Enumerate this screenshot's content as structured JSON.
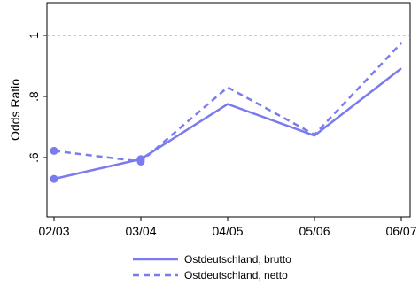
{
  "chart_data": {
    "type": "line",
    "xlabel": "",
    "ylabel": "Odds Ratio",
    "categories": [
      "02/03",
      "03/04",
      "04/05",
      "05/06",
      "06/07"
    ],
    "yticks": [
      {
        "value": 0.6,
        "label": ".6"
      },
      {
        "value": 0.8,
        "label": ".8"
      },
      {
        "value": 1.0,
        "label": "1"
      }
    ],
    "ylim": [
      0.5,
      1.1
    ],
    "reference_line": 1.0,
    "grid": false,
    "legend_position": "bottom",
    "series": [
      {
        "name": "Ostdeutschland, brutto",
        "style": "solid",
        "color": "#7b7bf0",
        "values": [
          0.53,
          0.595,
          0.775,
          0.672,
          0.892
        ],
        "markers": [
          true,
          true,
          false,
          false,
          false
        ]
      },
      {
        "name": "Ostdeutschland, netto",
        "style": "dashed",
        "color": "#7b7bf0",
        "values": [
          0.622,
          0.587,
          0.83,
          0.675,
          0.975
        ],
        "markers": [
          true,
          true,
          false,
          false,
          false
        ]
      }
    ]
  }
}
